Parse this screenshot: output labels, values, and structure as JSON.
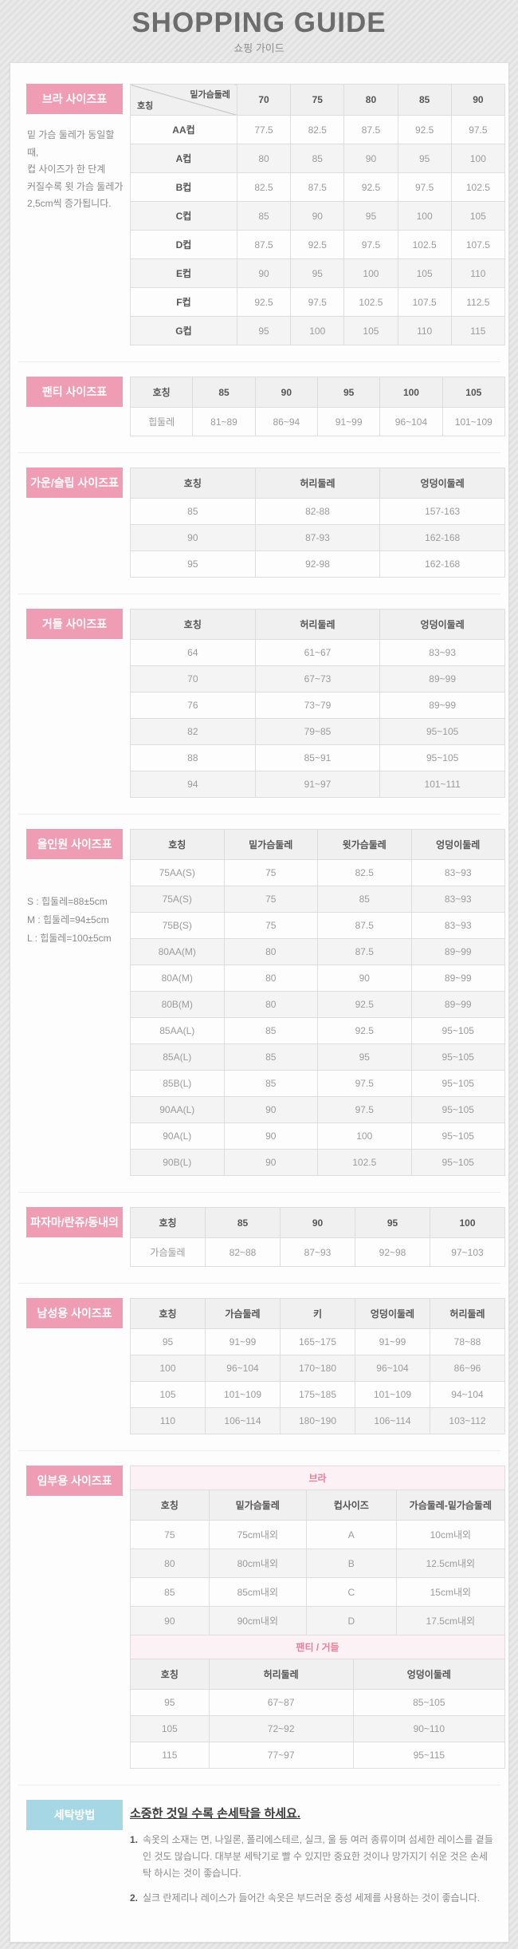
{
  "page": {
    "title": "SHOPPING GUIDE",
    "subtitle": "쇼핑 가이드"
  },
  "colors": {
    "accent_pink": "#ee9db4",
    "accent_blue": "#a5d8e4",
    "subtitle_pink_bg": "#fcf1f4",
    "subtitle_pink_text": "#e2849b"
  },
  "bra": {
    "label": "브라 사이즈표",
    "note_lines": [
      "밑 가슴 둘레가 동일할 때,",
      "컵 사이즈가 한 단계",
      "커질수록 윗 가슴 둘레가",
      "2,5cm씩 증가됩니다."
    ],
    "corner": {
      "top": "밑가슴둘레",
      "bottom": "호칭"
    },
    "columns": [
      "70",
      "75",
      "80",
      "85",
      "90"
    ],
    "rows": [
      [
        "AA컵",
        "77.5",
        "82.5",
        "87.5",
        "92.5",
        "97.5"
      ],
      [
        "A컵",
        "80",
        "85",
        "90",
        "95",
        "100"
      ],
      [
        "B컵",
        "82.5",
        "87.5",
        "92.5",
        "97.5",
        "102.5"
      ],
      [
        "C컵",
        "85",
        "90",
        "95",
        "100",
        "105"
      ],
      [
        "D컵",
        "87.5",
        "92.5",
        "97.5",
        "102.5",
        "107.5"
      ],
      [
        "E컵",
        "90",
        "95",
        "100",
        "105",
        "110"
      ],
      [
        "F컵",
        "92.5",
        "97.5",
        "102.5",
        "107.5",
        "112.5"
      ],
      [
        "G컵",
        "95",
        "100",
        "105",
        "110",
        "115"
      ]
    ]
  },
  "panty": {
    "label": "팬티 사이즈표",
    "columns": [
      "호칭",
      "85",
      "90",
      "95",
      "100",
      "105"
    ],
    "rows": [
      [
        "힙둘레",
        "81~89",
        "86~94",
        "91~99",
        "96~104",
        "101~109"
      ]
    ]
  },
  "gown": {
    "label": "가운/슬립 사이즈표",
    "columns": [
      "호칭",
      "허리둘레",
      "엉덩이둘레"
    ],
    "rows": [
      [
        "85",
        "82-88",
        "157-163"
      ],
      [
        "90",
        "87-93",
        "162-168"
      ],
      [
        "95",
        "92-98",
        "162-168"
      ]
    ]
  },
  "girdle": {
    "label": "거들 사이즈표",
    "columns": [
      "호칭",
      "허리둘레",
      "엉덩이둘레"
    ],
    "rows": [
      [
        "64",
        "61~67",
        "83~93"
      ],
      [
        "70",
        "67~73",
        "89~99"
      ],
      [
        "76",
        "73~79",
        "89~99"
      ],
      [
        "82",
        "79~85",
        "95~105"
      ],
      [
        "88",
        "85~91",
        "95~105"
      ],
      [
        "94",
        "91~97",
        "101~111"
      ]
    ]
  },
  "allinone": {
    "label": "올인원 사이즈표",
    "notes": [
      "S : 힙둘레=88±5cm",
      "M : 힙둘레=94±5cm",
      "L : 힙둘레=100±5cm"
    ],
    "columns": [
      "호칭",
      "밑가슴둘레",
      "윗가슴둘레",
      "엉덩이둘레"
    ],
    "rows": [
      [
        "75AA(S)",
        "75",
        "82.5",
        "83~93"
      ],
      [
        "75A(S)",
        "75",
        "85",
        "83~93"
      ],
      [
        "75B(S)",
        "75",
        "87.5",
        "83~93"
      ],
      [
        "80AA(M)",
        "80",
        "87.5",
        "89~99"
      ],
      [
        "80A(M)",
        "80",
        "90",
        "89~99"
      ],
      [
        "80B(M)",
        "80",
        "92.5",
        "89~99"
      ],
      [
        "85AA(L)",
        "85",
        "92.5",
        "95~105"
      ],
      [
        "85A(L)",
        "85",
        "95",
        "95~105"
      ],
      [
        "85B(L)",
        "85",
        "97.5",
        "95~105"
      ],
      [
        "90AA(L)",
        "90",
        "97.5",
        "95~105"
      ],
      [
        "90A(L)",
        "90",
        "100",
        "95~105"
      ],
      [
        "90B(L)",
        "90",
        "102.5",
        "95~105"
      ]
    ]
  },
  "pajama": {
    "label": "파자마/란쥬/동내의",
    "columns": [
      "호칭",
      "85",
      "90",
      "95",
      "100"
    ],
    "rows": [
      [
        "가슴둘레",
        "82~88",
        "87~93",
        "92~98",
        "97~103"
      ]
    ]
  },
  "mens": {
    "label": "남성용 사이즈표",
    "columns": [
      "호칭",
      "가슴둘레",
      "키",
      "엉덩이둘레",
      "허리둘레"
    ],
    "rows": [
      [
        "95",
        "91~99",
        "165~175",
        "91~99",
        "78~88"
      ],
      [
        "100",
        "96~104",
        "170~180",
        "96~104",
        "86~96"
      ],
      [
        "105",
        "101~109",
        "175~185",
        "101~109",
        "94~104"
      ],
      [
        "110",
        "106~114",
        "180~190",
        "106~114",
        "103~112"
      ]
    ]
  },
  "maternity": {
    "label": "임부용 사이즈표",
    "bra": {
      "subtitle": "브라",
      "columns": [
        "호칭",
        "밑가슴둘레",
        "컵사이즈",
        "가슴둘레-밑가슴둘레"
      ],
      "rows": [
        [
          "75",
          "75cm내외",
          "A",
          "10cm내외"
        ],
        [
          "80",
          "80cm내외",
          "B",
          "12.5cm내외"
        ],
        [
          "85",
          "85cm내외",
          "C",
          "15cm내외"
        ],
        [
          "90",
          "90cm내외",
          "D",
          "17.5cm내외"
        ]
      ]
    },
    "panty": {
      "subtitle": "팬티 / 거들",
      "columns": [
        "호칭",
        "허리둘레",
        "엉덩이둘레"
      ],
      "rows": [
        [
          "95",
          "67~87",
          "85~105"
        ],
        [
          "105",
          "72~92",
          "90~110"
        ],
        [
          "115",
          "77~97",
          "95~115"
        ]
      ]
    }
  },
  "washing": {
    "label": "세탁방법",
    "heading": "소중한 것일 수록 손세탁을 하세요.",
    "items": [
      {
        "num": "1.",
        "text": "속옷의 소재는 면, 나일론, 폴리에스테르, 실크, 울 등 여러 종류이며 섬세한 레이스를 곁들인 것도 많습니다. 대부분 세탁기로 빨 수 있지만 중요한 것이나 망가지기 쉬운 것은 손세탁 하시는 것이 좋습니다."
      },
      {
        "num": "2.",
        "text": "실크 란제리나 레이스가 들어간 속옷은 부드러운 중성 세제를 사용하는 것이 좋습니다."
      }
    ]
  }
}
